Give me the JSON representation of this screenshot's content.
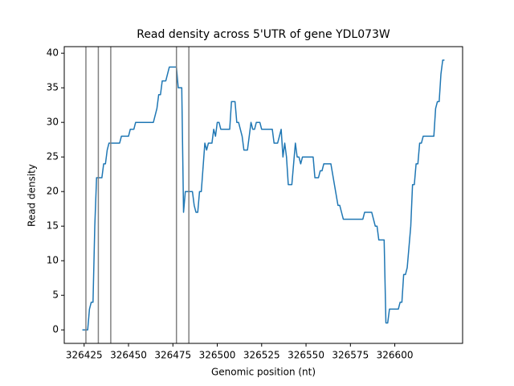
{
  "chart_data": {
    "type": "line",
    "title": "Read density across 5'UTR of gene YDL073W",
    "xlabel": "Genomic position (nt)",
    "ylabel": "Read density",
    "color": "#1f77b4",
    "vline_color": "#808080",
    "vlines": [
      326426,
      326433,
      326440,
      326477,
      326484
    ],
    "x": [
      326424,
      326427,
      326428,
      326429,
      326430,
      326431,
      326432,
      326435,
      326436,
      326437,
      326438,
      326439,
      326445,
      326446,
      326450,
      326451,
      326453,
      326454,
      326464,
      326466,
      326467,
      326468,
      326469,
      326471,
      326472,
      326473,
      326477,
      326478,
      326480,
      326481,
      326482,
      326486,
      326487,
      326488,
      326489,
      326490,
      326491,
      326493,
      326494,
      326495,
      326497,
      326498,
      326499,
      326500,
      326501,
      326502,
      326507,
      326508,
      326510,
      326511,
      326512,
      326513,
      326514,
      326515,
      326517,
      326518,
      326519,
      326520,
      326521,
      326522,
      326524,
      326525,
      326531,
      326532,
      326534,
      326535,
      326536,
      326537,
      326538,
      326539,
      326540,
      326542,
      326543,
      326544,
      326545,
      326546,
      326547,
      326548,
      326554,
      326555,
      326557,
      326558,
      326559,
      326560,
      326564,
      326566,
      326568,
      326569,
      326570,
      326571,
      326582,
      326583,
      326587,
      326588,
      326589,
      326590,
      326591,
      326594,
      326595,
      326596,
      326597,
      326602,
      326603,
      326604,
      326605,
      326606,
      326607,
      326608,
      326609,
      326610,
      326611,
      326612,
      326613,
      326614,
      326615,
      326616,
      326622,
      326623,
      326624,
      326625,
      326626,
      326627,
      326628
    ],
    "values": [
      0,
      0,
      3,
      4,
      4,
      15,
      22,
      22,
      24,
      24,
      26,
      27,
      27,
      28,
      28,
      29,
      29,
      30,
      30,
      32,
      34,
      34,
      36,
      36,
      37,
      38,
      38,
      35,
      35,
      17,
      20,
      20,
      18,
      17,
      17,
      20,
      20,
      27,
      26,
      27,
      27,
      29,
      28,
      30,
      30,
      29,
      29,
      33,
      33,
      30,
      30,
      29,
      28,
      26,
      26,
      28,
      30,
      29,
      29,
      30,
      30,
      29,
      29,
      27,
      27,
      28,
      29,
      25,
      27,
      25,
      21,
      21,
      24,
      27,
      25,
      25,
      24,
      25,
      25,
      22,
      22,
      23,
      23,
      24,
      24,
      21,
      18,
      18,
      17,
      16,
      16,
      17,
      17,
      16,
      15,
      15,
      13,
      13,
      1,
      1,
      3,
      3,
      4,
      4,
      8,
      8,
      9,
      12,
      15,
      21,
      21,
      24,
      24,
      27,
      27,
      28,
      28,
      32,
      33,
      33,
      37,
      39,
      39
    ],
    "xlim": [
      326413.8,
      326638.2
    ],
    "ylim": [
      -1.95,
      40.95
    ],
    "xticks": [
      326425,
      326450,
      326475,
      326500,
      326525,
      326550,
      326575,
      326600
    ],
    "yticks": [
      0,
      5,
      10,
      15,
      20,
      25,
      30,
      35,
      40
    ]
  }
}
